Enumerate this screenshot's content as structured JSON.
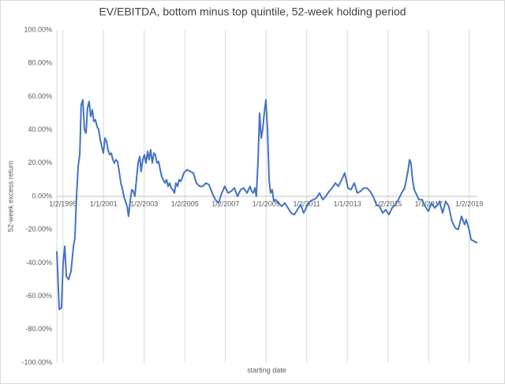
{
  "chart_data": {
    "type": "line",
    "title": "EV/EBITDA, bottom minus top quintile, 52-week holding period",
    "x_label": "starting date",
    "y_label": "52-week excess return",
    "x": [
      1998.7,
      1998.82,
      1998.93,
      1999.01,
      1999.09,
      1999.17,
      1999.28,
      1999.4,
      1999.52,
      1999.59,
      1999.67,
      1999.75,
      1999.83,
      1999.9,
      1999.98,
      2000.06,
      2000.14,
      2000.21,
      2000.29,
      2000.37,
      2000.45,
      2000.52,
      2000.6,
      2000.68,
      2000.76,
      2000.84,
      2000.91,
      2000.99,
      2001.07,
      2001.15,
      2001.22,
      2001.3,
      2001.38,
      2001.46,
      2001.53,
      2001.61,
      2001.69,
      2001.77,
      2001.85,
      2001.92,
      2002.0,
      2002.08,
      2002.16,
      2002.23,
      2002.31,
      2002.39,
      2002.47,
      2002.54,
      2002.62,
      2002.7,
      2002.78,
      2002.85,
      2002.93,
      2003.01,
      2003.09,
      2003.17,
      2003.24,
      2003.32,
      2003.4,
      2003.48,
      2003.55,
      2003.63,
      2003.71,
      2003.79,
      2003.86,
      2003.94,
      2004.02,
      2004.1,
      2004.18,
      2004.25,
      2004.33,
      2004.41,
      2004.49,
      2004.56,
      2004.64,
      2004.72,
      2004.8,
      2004.87,
      2004.95,
      2005.03,
      2005.11,
      2005.26,
      2005.42,
      2005.57,
      2005.73,
      2005.88,
      2006.04,
      2006.19,
      2006.35,
      2006.5,
      2006.66,
      2006.82,
      2006.97,
      2007.13,
      2007.28,
      2007.44,
      2007.59,
      2007.75,
      2007.9,
      2008.06,
      2008.21,
      2008.29,
      2008.37,
      2008.45,
      2008.52,
      2008.6,
      2008.68,
      2008.76,
      2008.83,
      2008.91,
      2008.99,
      2009.07,
      2009.15,
      2009.22,
      2009.3,
      2009.38,
      2009.46,
      2009.61,
      2009.77,
      2009.92,
      2010.08,
      2010.23,
      2010.39,
      2010.54,
      2010.7,
      2010.85,
      2011.01,
      2011.16,
      2011.32,
      2011.48,
      2011.63,
      2011.79,
      2011.94,
      2012.1,
      2012.25,
      2012.41,
      2012.56,
      2012.72,
      2012.87,
      2013.03,
      2013.18,
      2013.34,
      2013.49,
      2013.65,
      2013.8,
      2013.96,
      2014.12,
      2014.27,
      2014.43,
      2014.58,
      2014.74,
      2014.89,
      2015.05,
      2015.2,
      2015.36,
      2015.51,
      2015.67,
      2015.82,
      2015.98,
      2016.06,
      2016.13,
      2016.21,
      2016.29,
      2016.37,
      2016.52,
      2016.68,
      2016.83,
      2016.99,
      2017.14,
      2017.3,
      2017.45,
      2017.53,
      2017.69,
      2017.84,
      2017.99,
      2018.15,
      2018.31,
      2018.46,
      2018.62,
      2018.77,
      2018.85,
      2018.99,
      2019.09,
      2019.24,
      2019.4
    ],
    "series": [
      {
        "name": "52-week excess return",
        "color": "#4472c4",
        "values": [
          -33,
          -68,
          -67,
          -40,
          -30,
          -48,
          -50,
          -45,
          -30,
          -25,
          0,
          18,
          25,
          55,
          58,
          40,
          38,
          53,
          57,
          48,
          52,
          45,
          46,
          42,
          40,
          34,
          30,
          26,
          35,
          33,
          28,
          25,
          26,
          22,
          20,
          22,
          21,
          15,
          8,
          5,
          0,
          -3,
          -6,
          -12,
          -3,
          4,
          3,
          0,
          10,
          20,
          24,
          15,
          22,
          25,
          20,
          27,
          22,
          28,
          20,
          26,
          25,
          20,
          21,
          16,
          12,
          10,
          8,
          10,
          6,
          8,
          5,
          4,
          2,
          8,
          6,
          10,
          9,
          11,
          14,
          15,
          16,
          15,
          14,
          8,
          6,
          6,
          8,
          7,
          2,
          -2,
          -4,
          2,
          6,
          2,
          3,
          5,
          0,
          4,
          5,
          2,
          6,
          3,
          2,
          5,
          0,
          20,
          50,
          35,
          40,
          50,
          58,
          40,
          10,
          2,
          4,
          -3,
          -2,
          -4,
          -6,
          -4,
          -7,
          -10,
          -11,
          -8,
          -5,
          -10,
          -6,
          -3,
          -2,
          -1,
          2,
          -2,
          0,
          3,
          5,
          8,
          6,
          10,
          14,
          5,
          4,
          8,
          2,
          3,
          5,
          5,
          3,
          0,
          -5,
          -6,
          -10,
          -8,
          -11,
          -7,
          -5,
          -2,
          2,
          5,
          15,
          22,
          20,
          10,
          4,
          2,
          -2,
          -2,
          -6,
          -9,
          -4,
          -7,
          -5,
          -3,
          -10,
          -3,
          -6,
          -15,
          -19,
          -20,
          -12,
          -17,
          -14,
          -20,
          -26,
          -27,
          -28
        ]
      }
    ],
    "xlim": [
      1998.7,
      2019.4
    ],
    "xticks": [
      {
        "value": 1999.0,
        "label": "1/2/1999"
      },
      {
        "value": 2001.0,
        "label": "1/1/2001"
      },
      {
        "value": 2003.0,
        "label": "1/2/2003"
      },
      {
        "value": 2005.0,
        "label": "1/2/2005"
      },
      {
        "value": 2007.0,
        "label": "1/2/2007"
      },
      {
        "value": 2009.0,
        "label": "1/1/2009"
      },
      {
        "value": 2011.0,
        "label": "1/2/2011"
      },
      {
        "value": 2013.0,
        "label": "1/1/2013"
      },
      {
        "value": 2015.0,
        "label": "1/2/2015"
      },
      {
        "value": 2017.0,
        "label": "1/1/2017"
      },
      {
        "value": 2019.0,
        "label": "1/2/2019"
      }
    ],
    "ylim": [
      -100,
      100
    ],
    "yticks": [
      {
        "value": -100,
        "label": "-100.00%"
      },
      {
        "value": -80,
        "label": "-80.00%"
      },
      {
        "value": -60,
        "label": "-60.00%"
      },
      {
        "value": -40,
        "label": "-40.00%"
      },
      {
        "value": -20,
        "label": "-20.00%"
      },
      {
        "value": 0,
        "label": "0.00%"
      },
      {
        "value": 20,
        "label": "20.00%"
      },
      {
        "value": 40,
        "label": "40.00%"
      },
      {
        "value": 60,
        "label": "60.00%"
      },
      {
        "value": 80,
        "label": "80.00%"
      },
      {
        "value": 100,
        "label": "100.00%"
      }
    ],
    "x_grid": true
  }
}
